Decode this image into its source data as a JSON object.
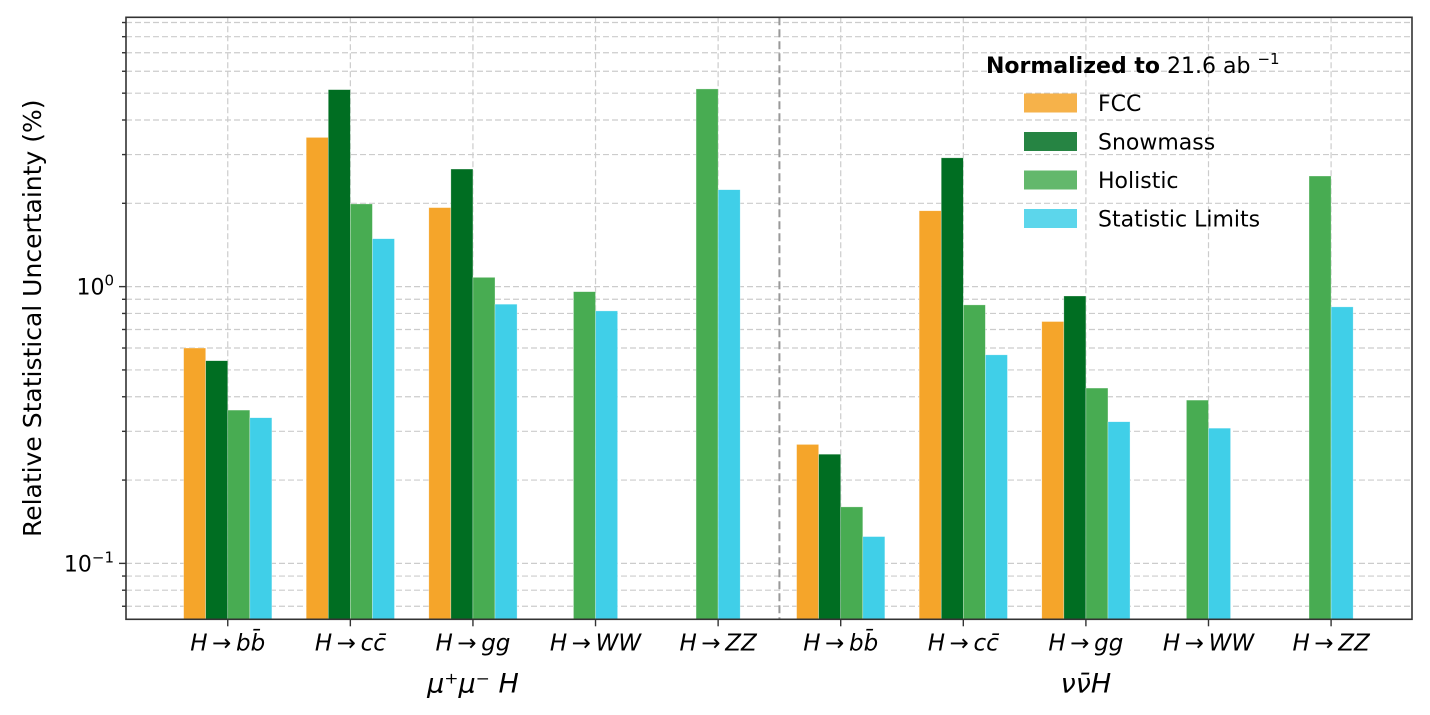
{
  "chart_data": {
    "type": "bar",
    "title": "",
    "xlabel": "",
    "ylabel": "Relative Statistical Uncertainty (%)",
    "yscale": "log",
    "ylim": [
      0.0628,
      9.4
    ],
    "xlim": [
      -0.83,
      9.66
    ],
    "grid": true,
    "y_major_ticks": [
      {
        "value": 0.1,
        "base": "10",
        "exp": "−1"
      },
      {
        "value": 1,
        "base": "10",
        "exp": "0"
      }
    ],
    "categories": [
      "H → bb̄",
      "H → cc̄",
      "H → gg",
      "H → WW",
      "H → ZZ",
      "H → bb̄",
      "H → cc̄",
      "H → gg",
      "H → WW",
      "H → ZZ"
    ],
    "groups": [
      {
        "label": "μ⁺μ⁻ H",
        "categories": [
          0,
          1,
          2,
          3,
          4
        ]
      },
      {
        "label": "νν̄H",
        "categories": [
          5,
          6,
          7,
          8,
          9
        ]
      }
    ],
    "series": [
      {
        "name": "FCC",
        "color": "#f5a52a",
        "values": [
          0.6,
          3.46,
          1.93,
          null,
          null,
          0.269,
          1.88,
          0.748,
          null,
          null
        ]
      },
      {
        "name": "Snowmass",
        "color": "#006e22",
        "values": [
          0.54,
          5.15,
          2.66,
          null,
          null,
          0.248,
          2.92,
          0.925,
          null,
          null
        ]
      },
      {
        "name": "Holistic",
        "color": "#48ac52",
        "values": [
          0.358,
          1.99,
          1.08,
          0.959,
          5.18,
          0.16,
          0.859,
          0.43,
          0.389,
          2.51
        ]
      },
      {
        "name": "Statistic Limits",
        "color": "#40cfe8",
        "values": [
          0.336,
          1.49,
          0.864,
          0.817,
          2.24,
          0.125,
          0.567,
          0.325,
          0.308,
          0.845
        ]
      }
    ],
    "legend": {
      "title_bold": "Normalized to",
      "title_rest": "21.6 ab",
      "title_sup": "−1",
      "placement": "top-right"
    }
  }
}
